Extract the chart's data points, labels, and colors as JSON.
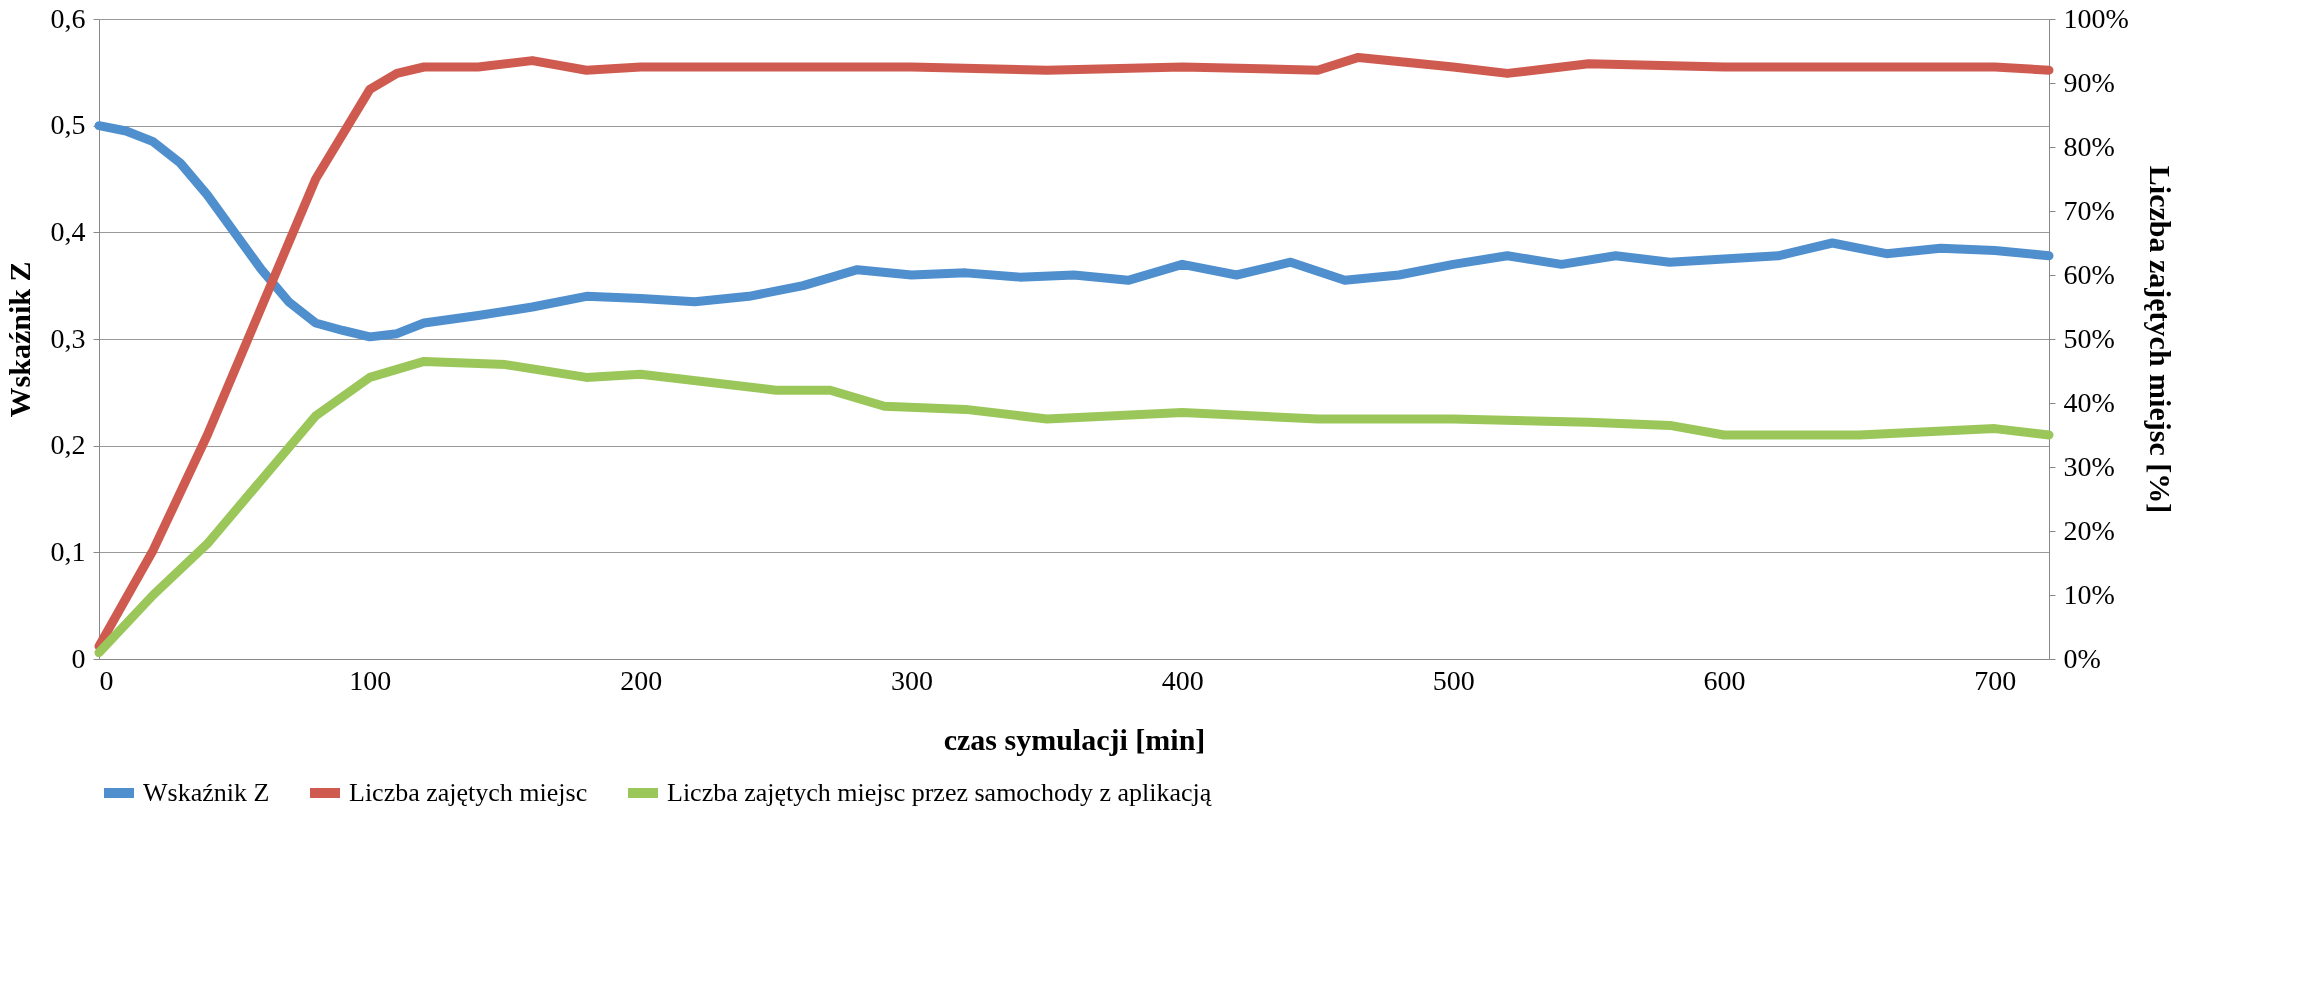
{
  "chart_data": {
    "type": "line",
    "xlabel": "czas symulacji [min]",
    "ylabel": "Wskaźnik Z",
    "y2label": "Liczba zajętych miejsc [%]",
    "xlim": [
      0,
      720
    ],
    "xticks": [
      0,
      100,
      200,
      300,
      400,
      500,
      600,
      700
    ],
    "ylim": [
      0,
      0.6
    ],
    "yticks": [
      0,
      {
        "value": 0.1,
        "label": "0,1"
      },
      {
        "value": 0.2,
        "label": "0,2"
      },
      {
        "value": 0.3,
        "label": "0,3"
      },
      {
        "value": 0.4,
        "label": "0,4"
      },
      {
        "value": 0.5,
        "label": "0,5"
      },
      {
        "value": 0.6,
        "label": "0,6"
      }
    ],
    "y2lim": [
      0,
      100
    ],
    "y2ticks": [
      {
        "value": 0,
        "label": "0%"
      },
      {
        "value": 10,
        "label": "10%"
      },
      {
        "value": 20,
        "label": "20%"
      },
      {
        "value": 30,
        "label": "30%"
      },
      {
        "value": 40,
        "label": "40%"
      },
      {
        "value": 50,
        "label": "50%"
      },
      {
        "value": 60,
        "label": "60%"
      },
      {
        "value": 70,
        "label": "70%"
      },
      {
        "value": 80,
        "label": "80%"
      },
      {
        "value": 90,
        "label": "90%"
      },
      {
        "value": 100,
        "label": "100%"
      }
    ],
    "grid": "y",
    "legend": "bottom",
    "line_style": "solid",
    "series": [
      {
        "name": "Wskaźnik Z",
        "color": "#4f8fce",
        "x": [
          0,
          10,
          20,
          30,
          40,
          50,
          60,
          70,
          80,
          90,
          100,
          110,
          120,
          140,
          160,
          180,
          200,
          220,
          240,
          260,
          280,
          300,
          320,
          340,
          360,
          380,
          400,
          420,
          440,
          460,
          480,
          500,
          520,
          540,
          560,
          580,
          600,
          620,
          640,
          660,
          680,
          700,
          720
        ],
        "values": [
          0.5,
          0.495,
          0.485,
          0.465,
          0.435,
          0.4,
          0.365,
          0.335,
          0.315,
          0.308,
          0.302,
          0.305,
          0.315,
          0.322,
          0.33,
          0.34,
          0.338,
          0.335,
          0.34,
          0.35,
          0.365,
          0.36,
          0.362,
          0.358,
          0.36,
          0.355,
          0.37,
          0.36,
          0.372,
          0.355,
          0.36,
          0.37,
          0.378,
          0.37,
          0.378,
          0.372,
          0.375,
          0.378,
          0.39,
          0.38,
          0.385,
          0.383,
          0.378
        ]
      },
      {
        "name": "Liczba zajętych miejsc",
        "color": "#cf5b50",
        "axis": "y2",
        "x": [
          0,
          20,
          40,
          60,
          80,
          100,
          110,
          120,
          140,
          160,
          180,
          200,
          250,
          300,
          350,
          400,
          450,
          465,
          500,
          520,
          550,
          600,
          650,
          700,
          720
        ],
        "values": [
          2,
          17,
          35,
          55,
          75,
          89,
          91.5,
          92.5,
          92.5,
          93.5,
          92,
          92.5,
          92.5,
          92.5,
          92,
          92.5,
          92,
          94,
          92.5,
          91.5,
          93,
          92.5,
          92.5,
          92.5,
          92
        ]
      },
      {
        "name": "Liczba zajętych miejsc przez samochody z aplikacją",
        "color": "#9bc75a",
        "axis": "y2",
        "x": [
          0,
          20,
          40,
          60,
          80,
          100,
          120,
          150,
          180,
          200,
          250,
          270,
          290,
          320,
          350,
          400,
          450,
          500,
          550,
          580,
          600,
          650,
          700,
          720
        ],
        "values": [
          1,
          10,
          18,
          28,
          38,
          44,
          46.5,
          46,
          44,
          44.5,
          42,
          42,
          39.5,
          39,
          37.5,
          38.5,
          37.5,
          37.5,
          37,
          36.5,
          35,
          35,
          36,
          35
        ]
      }
    ]
  }
}
